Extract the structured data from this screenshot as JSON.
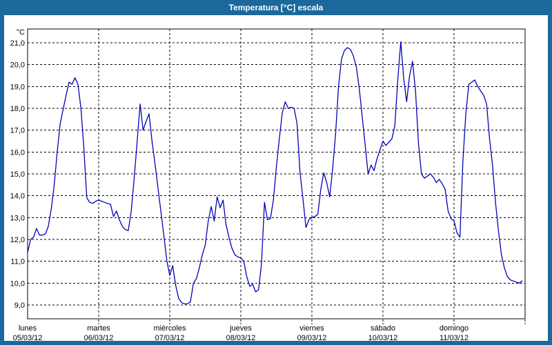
{
  "window": {
    "title": "Temperatura [°C] escala",
    "frame_color": "#1b699c",
    "title_text_color": "#ffffff",
    "background_color": "#ffffff"
  },
  "chart_data": {
    "type": "line",
    "title": "Temperatura [°C] escala",
    "grid": "dashed-black",
    "legend_position": "none",
    "line_color": "#0000b8",
    "y_axis": {
      "unit_label": "°C",
      "min": 9,
      "max": 21,
      "tick_step": 1,
      "tick_labels": [
        "21,0",
        "20,0",
        "19,0",
        "18,0",
        "17,0",
        "16,0",
        "15,0",
        "14,0",
        "13,0",
        "12,0",
        "11,0",
        "10,0",
        "9,0"
      ]
    },
    "x_axis": {
      "unit": "hours",
      "hours_per_day": 24,
      "days": [
        {
          "label": "lunes",
          "date": "05/03/12"
        },
        {
          "label": "martes",
          "date": "06/03/12"
        },
        {
          "label": "miércoles",
          "date": "07/03/12"
        },
        {
          "label": "jueves",
          "date": "08/03/12"
        },
        {
          "label": "viernes",
          "date": "09/03/12"
        },
        {
          "label": "sábado",
          "date": "10/03/12"
        },
        {
          "label": "domingo",
          "date": "11/03/12"
        }
      ]
    },
    "series": [
      {
        "name": "Temperatura",
        "values": [
          11.4,
          12.0,
          12.1,
          12.5,
          12.2,
          12.2,
          12.25,
          12.6,
          13.4,
          14.5,
          16.0,
          17.3,
          17.95,
          18.6,
          19.2,
          19.1,
          19.4,
          19.1,
          18.0,
          16.2,
          13.9,
          13.7,
          13.65,
          13.75,
          13.8,
          13.75,
          13.7,
          13.65,
          13.6,
          13.05,
          13.3,
          12.9,
          12.6,
          12.45,
          12.4,
          13.3,
          14.8,
          16.5,
          18.2,
          17.0,
          17.4,
          17.75,
          16.5,
          15.5,
          14.4,
          13.3,
          12.2,
          11.05,
          10.35,
          10.8,
          9.9,
          9.3,
          9.1,
          9.05,
          9.05,
          9.15,
          10.0,
          10.2,
          10.7,
          11.3,
          11.75,
          12.85,
          13.5,
          12.85,
          13.95,
          13.45,
          13.8,
          12.7,
          12.1,
          11.6,
          11.3,
          11.2,
          11.15,
          11.0,
          10.3,
          9.85,
          9.95,
          9.6,
          9.7,
          10.9,
          13.7,
          12.9,
          12.95,
          13.8,
          15.3,
          16.6,
          17.8,
          18.3,
          18.0,
          18.05,
          18.0,
          17.3,
          15.05,
          13.85,
          12.55,
          12.9,
          13.0,
          13.05,
          13.15,
          14.3,
          15.05,
          14.6,
          13.95,
          15.2,
          16.8,
          19.0,
          20.25,
          20.65,
          20.78,
          20.7,
          20.4,
          19.9,
          18.9,
          17.6,
          16.3,
          15.0,
          15.4,
          15.15,
          15.7,
          16.1,
          16.5,
          16.3,
          16.45,
          16.6,
          17.2,
          19.3,
          21.05,
          19.4,
          18.3,
          19.5,
          20.15,
          18.8,
          16.4,
          15.0,
          14.8,
          14.9,
          15.0,
          14.85,
          14.6,
          14.75,
          14.55,
          14.3,
          13.3,
          12.95,
          12.85,
          12.3,
          12.1,
          15.6,
          17.8,
          19.1,
          19.2,
          19.3,
          19.0,
          18.8,
          18.6,
          18.2,
          16.6,
          15.4,
          13.7,
          12.4,
          11.3,
          10.7,
          10.3,
          10.15,
          10.1,
          10.05,
          10.0,
          10.1
        ]
      }
    ]
  }
}
